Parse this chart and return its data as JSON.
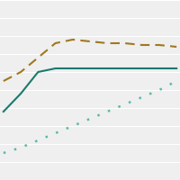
{
  "lines": [
    {
      "x": [
        0,
        1,
        2,
        3,
        4,
        5,
        6,
        7,
        8,
        9,
        10
      ],
      "y": [
        55,
        60,
        68,
        76,
        78,
        77,
        76,
        76,
        75,
        75,
        74
      ],
      "color": "#a07820",
      "linestyle": "--",
      "linewidth": 1.5,
      "dash_seq": [
        5,
        3
      ]
    },
    {
      "x": [
        0,
        1,
        2,
        3,
        4,
        5,
        6,
        7,
        8,
        9,
        10
      ],
      "y": [
        38,
        48,
        60,
        62,
        62,
        62,
        62,
        62,
        62,
        62,
        62
      ],
      "color": "#1a7a6e",
      "linestyle": "-",
      "linewidth": 1.5
    },
    {
      "x": [
        0,
        1,
        2,
        3,
        4,
        5,
        6,
        7,
        8,
        9,
        10
      ],
      "y": [
        15,
        18,
        22,
        26,
        30,
        34,
        38,
        42,
        46,
        50,
        55
      ],
      "color": "#5ab8a8",
      "linestyle": ":",
      "linewidth": 1.8,
      "dot_seq": [
        1,
        4
      ]
    }
  ],
  "xlim": [
    -0.2,
    10.2
  ],
  "ylim": [
    0,
    100
  ],
  "background_color": "#efefef",
  "grid_color": "#ffffff",
  "grid_linewidth": 0.8,
  "n_gridlines": 10,
  "figsize": [
    2.0,
    2.0
  ],
  "dpi": 100
}
